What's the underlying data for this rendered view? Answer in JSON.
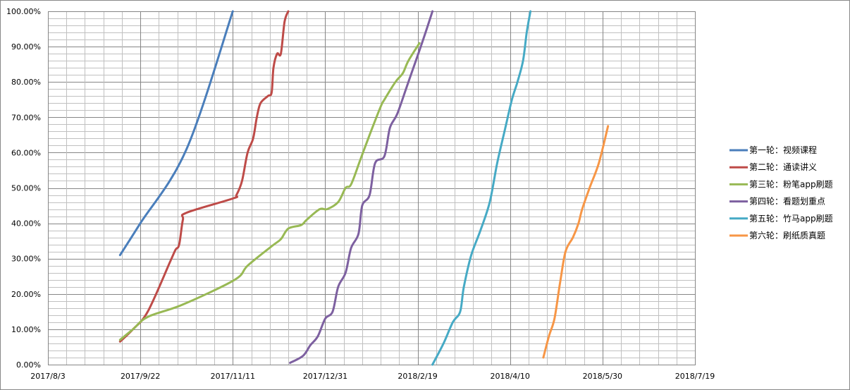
{
  "chart_data": {
    "type": "line",
    "title": "",
    "xlabel": "",
    "ylabel": "",
    "x_axis": {
      "type": "date",
      "range": [
        "2017-08-03",
        "2018-07-19"
      ],
      "tick_labels": [
        "2017/8/3",
        "2017/9/22",
        "2017/11/11",
        "2017/12/31",
        "2018/2/19",
        "2018/4/10",
        "2018/5/30",
        "2018/7/19"
      ],
      "tick_dates": [
        "2017-08-03",
        "2017-09-22",
        "2017-11-11",
        "2017-12-31",
        "2018-02-19",
        "2018-04-10",
        "2018-05-30",
        "2018-07-19"
      ],
      "minor_interval_days": 10
    },
    "y_axis": {
      "range": [
        0,
        100
      ],
      "unit": "percent",
      "tick_labels": [
        "0.00%",
        "10.00%",
        "20.00%",
        "30.00%",
        "40.00%",
        "50.00%",
        "60.00%",
        "70.00%",
        "80.00%",
        "90.00%",
        "100.00%"
      ],
      "minor_interval": 2
    },
    "grid": true,
    "legend_position": "right",
    "series": [
      {
        "name": "第一轮：视频课程",
        "color": "#4a7ebb",
        "points": [
          [
            "2017-09-11",
            31
          ],
          [
            "2017-09-22",
            40
          ],
          [
            "2017-10-17",
            61
          ],
          [
            "2017-11-11",
            100
          ]
        ]
      },
      {
        "name": "第二轮：通读讲义",
        "color": "#be4b48",
        "points": [
          [
            "2017-09-11",
            6.5
          ],
          [
            "2017-09-18",
            10
          ],
          [
            "2017-09-26",
            15
          ],
          [
            "2017-10-08",
            29
          ],
          [
            "2017-10-11",
            32.5
          ],
          [
            "2017-10-13",
            34
          ],
          [
            "2017-10-15",
            41
          ],
          [
            "2017-10-17",
            43
          ],
          [
            "2017-11-11",
            47
          ],
          [
            "2017-11-13",
            48
          ],
          [
            "2017-11-16",
            52
          ],
          [
            "2017-11-19",
            60
          ],
          [
            "2017-11-22",
            64
          ],
          [
            "2017-11-24",
            70
          ],
          [
            "2017-11-26",
            74
          ],
          [
            "2017-11-30",
            76
          ],
          [
            "2017-12-02",
            77
          ],
          [
            "2017-12-03",
            84
          ],
          [
            "2017-12-05",
            88
          ],
          [
            "2017-12-07",
            88
          ],
          [
            "2017-12-09",
            97
          ],
          [
            "2017-12-11",
            100
          ]
        ]
      },
      {
        "name": "第三轮：粉笔app刷题",
        "color": "#98b954",
        "points": [
          [
            "2017-09-11",
            7
          ],
          [
            "2017-09-18",
            10
          ],
          [
            "2017-09-26",
            13.5
          ],
          [
            "2017-10-15",
            17
          ],
          [
            "2017-11-12",
            24
          ],
          [
            "2017-11-19",
            28
          ],
          [
            "2017-12-02",
            33.5
          ],
          [
            "2017-12-07",
            35.5
          ],
          [
            "2017-12-11",
            38.5
          ],
          [
            "2017-12-18",
            39.5
          ],
          [
            "2017-12-21",
            41
          ],
          [
            "2017-12-28",
            44
          ],
          [
            "2018-01-01",
            44
          ],
          [
            "2018-01-07",
            46
          ],
          [
            "2018-01-11",
            50
          ],
          [
            "2018-01-14",
            51
          ],
          [
            "2018-01-19",
            58
          ],
          [
            "2018-01-24",
            65
          ],
          [
            "2018-01-30",
            73
          ],
          [
            "2018-02-01",
            75
          ],
          [
            "2018-02-07",
            80
          ],
          [
            "2018-02-11",
            82.5
          ],
          [
            "2018-02-14",
            86
          ],
          [
            "2018-02-20",
            91
          ]
        ]
      },
      {
        "name": "第四轮：看题划重点",
        "color": "#7d60a0",
        "points": [
          [
            "2017-12-12",
            0.5
          ],
          [
            "2017-12-19",
            2.5
          ],
          [
            "2017-12-23",
            5.5
          ],
          [
            "2017-12-27",
            8
          ],
          [
            "2017-12-31",
            13
          ],
          [
            "2018-01-04",
            15
          ],
          [
            "2018-01-07",
            22
          ],
          [
            "2018-01-11",
            26
          ],
          [
            "2018-01-14",
            33
          ],
          [
            "2018-01-18",
            37
          ],
          [
            "2018-01-20",
            45
          ],
          [
            "2018-01-24",
            48
          ],
          [
            "2018-01-27",
            57
          ],
          [
            "2018-02-01",
            59
          ],
          [
            "2018-02-04",
            67
          ],
          [
            "2018-02-08",
            71
          ],
          [
            "2018-02-14",
            80
          ],
          [
            "2018-02-22",
            92
          ],
          [
            "2018-02-27",
            100
          ]
        ]
      },
      {
        "name": "第五轮：竹马app刷题",
        "color": "#46aac5",
        "points": [
          [
            "2018-02-27",
            0
          ],
          [
            "2018-03-05",
            6
          ],
          [
            "2018-03-10",
            12
          ],
          [
            "2018-03-14",
            15
          ],
          [
            "2018-03-16",
            22
          ],
          [
            "2018-03-20",
            31
          ],
          [
            "2018-03-25",
            38
          ],
          [
            "2018-03-30",
            46
          ],
          [
            "2018-04-03",
            57
          ],
          [
            "2018-04-07",
            66
          ],
          [
            "2018-04-11",
            75
          ],
          [
            "2018-04-14",
            80
          ],
          [
            "2018-04-17",
            86
          ],
          [
            "2018-04-19",
            94
          ],
          [
            "2018-04-21",
            100
          ]
        ]
      },
      {
        "name": "第六轮：刷纸质真题",
        "color": "#f79646",
        "points": [
          [
            "2018-04-28",
            2
          ],
          [
            "2018-05-01",
            8
          ],
          [
            "2018-05-04",
            13
          ],
          [
            "2018-05-07",
            23
          ],
          [
            "2018-05-10",
            32
          ],
          [
            "2018-05-14",
            36
          ],
          [
            "2018-05-17",
            40
          ],
          [
            "2018-05-19",
            44
          ],
          [
            "2018-05-23",
            50
          ],
          [
            "2018-05-28",
            57
          ],
          [
            "2018-06-02",
            67.5
          ]
        ]
      }
    ]
  }
}
